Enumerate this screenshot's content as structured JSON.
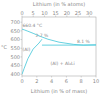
{
  "chart_data": {
    "type": "line",
    "xlabel": "Lithium (in % of mass)",
    "x2label": "Lithium (in % atoms)",
    "ylabel": "°C",
    "xlim": [
      0,
      10
    ],
    "xticks": [
      0,
      2,
      4,
      6,
      8,
      10
    ],
    "x2lim": [
      0,
      33
    ],
    "x2ticks": [
      0,
      5,
      10,
      15,
      20,
      25,
      30
    ],
    "ylim": [
      390,
      730
    ],
    "yticks": [
      400,
      450,
      500,
      550,
      600,
      650,
      700
    ],
    "grid": false,
    "series": [
      {
        "color": "#55ccdd",
        "x": [
          0.0,
          0.3,
          0.8,
          1.5,
          2.5,
          3.5,
          5.0,
          7.0,
          8.3,
          10.0
        ],
        "values": [
          660,
          656,
          648,
          636,
          618,
          602,
          585,
          572,
          568,
          570
        ]
      },
      {
        "color": "#55ccdd",
        "x": [
          0.0,
          0.3,
          0.8,
          1.5,
          2.3,
          2.7
        ],
        "values": [
          400,
          435,
          490,
          545,
          580,
          602
        ]
      },
      {
        "color": "#55ccdd",
        "x": [
          2.7,
          10.0
        ],
        "values": [
          568,
          568
        ]
      }
    ],
    "annotations": [
      {
        "text": "660.4 °C",
        "x": 0.1,
        "y": 666
      },
      {
        "text": "2.7 %",
        "x": 2.7,
        "y": 608
      },
      {
        "text": "8.1 %",
        "x": 8.3,
        "y": 574
      },
      {
        "text": "(Al)",
        "x": 0.5,
        "y": 530
      },
      {
        "text": "(Al) + Al₂Li",
        "x": 5.5,
        "y": 450
      }
    ]
  }
}
